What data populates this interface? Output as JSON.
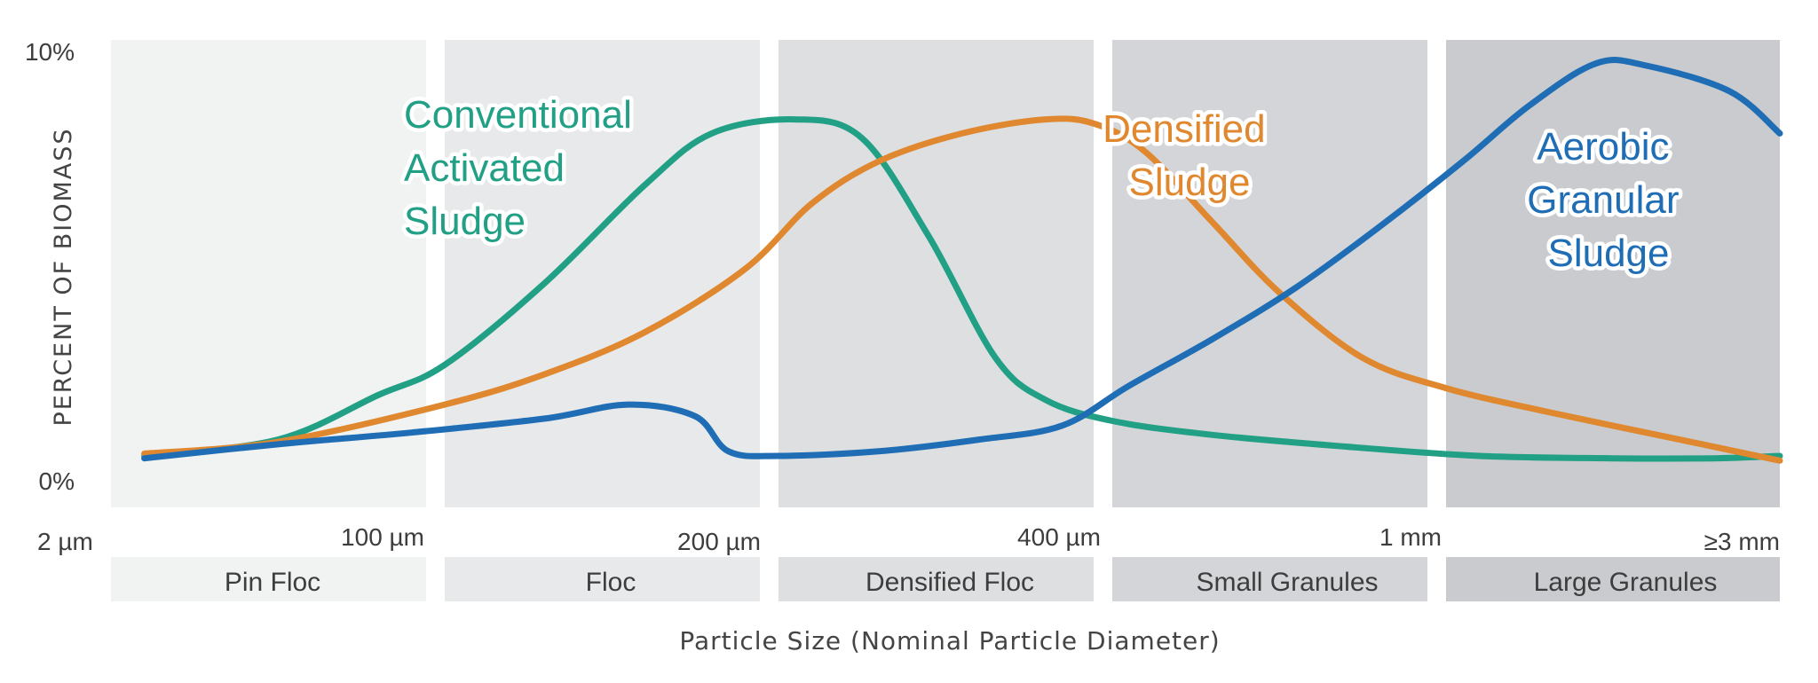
{
  "chart_data": {
    "type": "line",
    "ylabel": "PERCENT OF BIOMASS",
    "xlabel": "Particle Size (Nominal Particle Diameter)",
    "ylim": [
      0,
      10
    ],
    "y_ticks": [
      "10%",
      "0%"
    ],
    "x_ticks": [
      "2 µm",
      "100 µm",
      "200 µm",
      "400 µm",
      "1 mm",
      "≥3 mm"
    ],
    "xlim": [
      0,
      5
    ],
    "zones": [
      {
        "name": "Pin Floc",
        "range": [
          0,
          1
        ],
        "color": "#f1f3f3"
      },
      {
        "name": "Floc",
        "range": [
          1,
          2
        ],
        "color": "#e8e9ea"
      },
      {
        "name": "Densified Floc",
        "range": [
          2,
          3
        ],
        "color": "#dedfe1"
      },
      {
        "name": "Small Granules",
        "range": [
          3,
          4
        ],
        "color": "#d3d5d8"
      },
      {
        "name": "Large Granules",
        "range": [
          4,
          5
        ],
        "color": "#c9cbcf"
      }
    ],
    "series": [
      {
        "name": "Conventional Activated Sludge",
        "label_lines": [
          "Conventional",
          "Activated",
          "Sludge"
        ],
        "color": "#21a085",
        "points": [
          [
            0.1,
            1.1
          ],
          [
            0.5,
            1.45
          ],
          [
            0.8,
            2.4
          ],
          [
            1.0,
            3.05
          ],
          [
            1.3,
            4.8
          ],
          [
            1.6,
            6.9
          ],
          [
            1.8,
            8.0
          ],
          [
            2.05,
            8.3
          ],
          [
            2.25,
            7.9
          ],
          [
            2.45,
            5.8
          ],
          [
            2.65,
            3.2
          ],
          [
            2.8,
            2.3
          ],
          [
            3.0,
            1.85
          ],
          [
            3.3,
            1.55
          ],
          [
            3.7,
            1.3
          ],
          [
            4.1,
            1.1
          ],
          [
            4.5,
            1.05
          ],
          [
            4.8,
            1.05
          ],
          [
            5.0,
            1.1
          ]
        ]
      },
      {
        "name": "Densified Sludge",
        "label_lines": [
          "Densified",
          "Sludge"
        ],
        "color": "#e0882f",
        "points": [
          [
            0.1,
            1.15
          ],
          [
            0.5,
            1.4
          ],
          [
            1.0,
            2.2
          ],
          [
            1.3,
            2.85
          ],
          [
            1.6,
            3.75
          ],
          [
            1.9,
            5.1
          ],
          [
            2.1,
            6.5
          ],
          [
            2.3,
            7.4
          ],
          [
            2.55,
            8.0
          ],
          [
            2.8,
            8.3
          ],
          [
            2.95,
            8.2
          ],
          [
            3.1,
            7.6
          ],
          [
            3.3,
            6.1
          ],
          [
            3.5,
            4.6
          ],
          [
            3.75,
            3.2
          ],
          [
            4.0,
            2.55
          ],
          [
            4.3,
            2.05
          ],
          [
            4.7,
            1.45
          ],
          [
            5.0,
            1.0
          ]
        ]
      },
      {
        "name": "Aerobic Granular Sludge",
        "label_lines": [
          "Aerobic",
          "Granular",
          "Sludge"
        ],
        "color": "#1f6eb5",
        "points": [
          [
            0.1,
            1.05
          ],
          [
            0.5,
            1.35
          ],
          [
            0.9,
            1.6
          ],
          [
            1.3,
            1.9
          ],
          [
            1.55,
            2.2
          ],
          [
            1.75,
            1.95
          ],
          [
            1.85,
            1.2
          ],
          [
            2.0,
            1.1
          ],
          [
            2.3,
            1.2
          ],
          [
            2.6,
            1.45
          ],
          [
            2.85,
            1.75
          ],
          [
            3.05,
            2.6
          ],
          [
            3.3,
            3.6
          ],
          [
            3.55,
            4.7
          ],
          [
            3.8,
            6.0
          ],
          [
            4.05,
            7.4
          ],
          [
            4.25,
            8.6
          ],
          [
            4.45,
            9.5
          ],
          [
            4.6,
            9.45
          ],
          [
            4.85,
            8.9
          ],
          [
            5.0,
            8.0
          ]
        ]
      }
    ]
  }
}
